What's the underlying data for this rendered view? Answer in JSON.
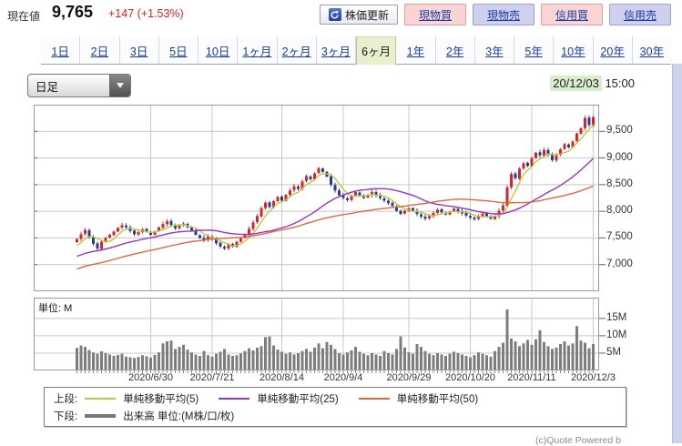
{
  "header": {
    "label": "現在値",
    "price": "9,765",
    "change": "+147 (+1.53%)",
    "refresh_button": {
      "label": "株価更新"
    },
    "order_buttons": [
      {
        "label": "現物買",
        "type": "buy"
      },
      {
        "label": "現物売",
        "type": "sell"
      },
      {
        "label": "信用買",
        "type": "buy"
      },
      {
        "label": "信用売",
        "type": "sell"
      }
    ]
  },
  "period_tabs": {
    "items": [
      {
        "label": "1日"
      },
      {
        "label": "2日"
      },
      {
        "label": "3日"
      },
      {
        "label": "5日"
      },
      {
        "label": "10日"
      },
      {
        "label": "1ヶ月"
      },
      {
        "label": "2ヶ月"
      },
      {
        "label": "3ヶ月"
      },
      {
        "label": "6ヶ月",
        "selected": true
      },
      {
        "label": "1年"
      },
      {
        "label": "2年"
      },
      {
        "label": "3年"
      },
      {
        "label": "5年"
      },
      {
        "label": "10年"
      },
      {
        "label": "20年"
      },
      {
        "label": "30年"
      }
    ]
  },
  "toolbar": {
    "chart_type": "日足",
    "date": "20/12/03",
    "time": "15:00"
  },
  "chart_data": {
    "type": "candlestick+volume",
    "title": "6ヶ月 日足チャート",
    "price_axis": {
      "tick_labels": [
        "9,500",
        "9,000",
        "8,500",
        "8,000",
        "7,500",
        "7,000"
      ],
      "tick_values": [
        9500,
        9000,
        8500,
        8000,
        7500,
        7000
      ],
      "range": [
        6500,
        10000
      ]
    },
    "volume_axis": {
      "unit_label": "単位: M",
      "tick_labels": [
        "15M",
        "10M",
        "5M"
      ],
      "tick_values": [
        15,
        10,
        5
      ],
      "range": [
        0,
        21
      ]
    },
    "x_axis": {
      "labels": [
        "2020/6/30",
        "2020/7/21",
        "2020/8/14",
        "2020/9/4",
        "2020/9/29",
        "2020/10/20",
        "2020/11/11",
        "2020/12/3"
      ],
      "label_indices": [
        18,
        33,
        50,
        65,
        81,
        96,
        111,
        126
      ]
    },
    "closes": [
      7480,
      7570,
      7650,
      7520,
      7390,
      7300,
      7430,
      7500,
      7560,
      7620,
      7690,
      7740,
      7700,
      7630,
      7570,
      7610,
      7660,
      7620,
      7560,
      7620,
      7700,
      7760,
      7810,
      7740,
      7680,
      7730,
      7770,
      7700,
      7640,
      7560,
      7500,
      7460,
      7530,
      7480,
      7400,
      7340,
      7300,
      7380,
      7340,
      7430,
      7490,
      7570,
      7670,
      7790,
      7910,
      8060,
      8160,
      8080,
      8190,
      8270,
      8200,
      8310,
      8390,
      8470,
      8420,
      8560,
      8660,
      8600,
      8710,
      8810,
      8740,
      8650,
      8500,
      8390,
      8300,
      8250,
      8210,
      8290,
      8360,
      8300,
      8250,
      8310,
      8360,
      8300,
      8250,
      8200,
      8150,
      8100,
      8010,
      7950,
      8010,
      8060,
      8000,
      7950,
      7900,
      7860,
      7910,
      7970,
      8030,
      7980,
      7940,
      7990,
      8050,
      8000,
      7960,
      7920,
      7880,
      7850,
      7910,
      7960,
      7900,
      7860,
      7910,
      8010,
      8110,
      8450,
      8700,
      8620,
      8800,
      8900,
      8850,
      9000,
      9100,
      9050,
      9150,
      9060,
      8960,
      9060,
      9160,
      9260,
      9200,
      9310,
      9460,
      9560,
      9750,
      9618,
      9765
    ],
    "volumes": [
      6.5,
      7.2,
      6.8,
      5.9,
      5.2,
      4.8,
      5.5,
      5.0,
      4.6,
      4.2,
      4.5,
      4.8,
      4.0,
      3.8,
      3.6,
      3.9,
      4.4,
      4.1,
      3.7,
      4.5,
      5.2,
      7.8,
      8.4,
      8.6,
      6.2,
      6.8,
      7.4,
      6.0,
      5.2,
      4.6,
      4.2,
      5.6,
      4.4,
      4.0,
      4.8,
      5.4,
      6.2,
      4.6,
      4.2,
      4.4,
      4.9,
      5.6,
      6.4,
      5.8,
      6.6,
      7.0,
      9.6,
      9.8,
      7.2,
      6.0,
      5.4,
      4.8,
      5.2,
      4.6,
      5.0,
      5.6,
      6.2,
      5.4,
      6.6,
      7.8,
      6.4,
      8.2,
      7.4,
      6.2,
      5.0,
      4.6,
      5.2,
      5.8,
      6.8,
      5.4,
      4.8,
      4.4,
      5.0,
      4.6,
      4.2,
      5.6,
      5.0,
      4.6,
      6.2,
      9.8,
      6.6,
      5.2,
      4.8,
      7.6,
      6.8,
      5.6,
      4.8,
      4.4,
      5.0,
      4.6,
      4.2,
      4.8,
      5.4,
      5.0,
      4.6,
      4.2,
      3.8,
      4.4,
      5.2,
      4.8,
      4.4,
      4.0,
      5.6,
      6.8,
      8.0,
      17.6,
      9.2,
      8.4,
      7.0,
      7.8,
      8.8,
      7.4,
      9.0,
      11.6,
      8.2,
      7.0,
      6.2,
      6.6,
      7.6,
      8.4,
      7.2,
      7.8,
      12.8,
      8.6,
      8.0,
      6.4,
      7.6
    ],
    "prehistory_closes": [
      6450,
      6470,
      6430,
      6490,
      6520,
      6500,
      6550,
      6580,
      6560,
      6610,
      6640,
      6620,
      6670,
      6700,
      6680,
      6730,
      6760,
      6740,
      6790,
      6820,
      6800,
      6850,
      6880,
      6860,
      6910,
      6940,
      6920,
      6970,
      7000,
      6980,
      7020,
      7050,
      7030,
      7070,
      7100,
      7080,
      7120,
      7150,
      7130,
      7170,
      7200,
      7180,
      7220,
      7250,
      7230,
      7270,
      7300,
      7280,
      7330,
      7400
    ],
    "moving_averages": [
      {
        "period": 5,
        "color": "#b8cc3e"
      },
      {
        "period": 25,
        "color": "#9933cc"
      },
      {
        "period": 50,
        "color": "#e0693a"
      }
    ],
    "colors": {
      "up": "#d8232e",
      "down": "#283a94",
      "volume": "#7d7d7d",
      "grid": "#c8c8c8",
      "border": "#999999"
    }
  },
  "legend": {
    "upper_label": "上段:",
    "upper_items": [
      {
        "label": "単純移動平均(5)",
        "color": "#b8cc3e"
      },
      {
        "label": "単純移動平均(25)",
        "color": "#9933cc"
      },
      {
        "label": "単純移動平均(50)",
        "color": "#e0693a"
      }
    ],
    "lower_label": "下段:",
    "lower_items": [
      {
        "label": "出来高 単位:(M株/口/枚)",
        "color": "#777777"
      }
    ]
  },
  "footer": {
    "credit": "(c)Quote Powered b"
  }
}
